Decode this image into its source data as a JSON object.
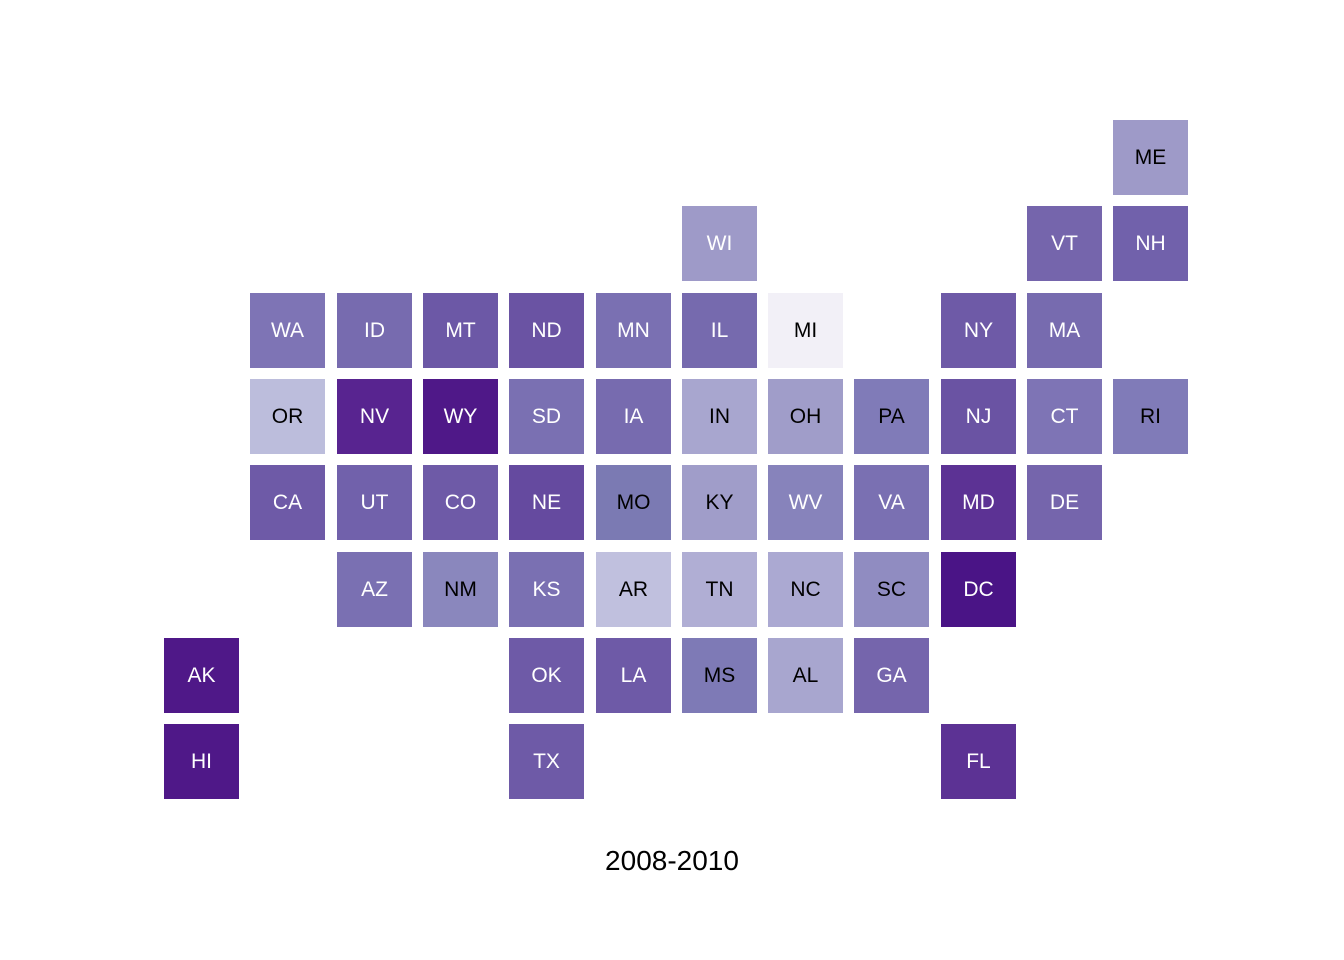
{
  "caption": "2008-2010",
  "colors": {
    "light_text": "#ffffff",
    "dark_text": "#000000"
  },
  "tiles": [
    {
      "abbr": "ME",
      "col": 11,
      "row": 0,
      "color": "#9e9ac8",
      "text": "dark"
    },
    {
      "abbr": "WI",
      "col": 6,
      "row": 1,
      "color": "#9e9ac8",
      "text": "light"
    },
    {
      "abbr": "VT",
      "col": 10,
      "row": 1,
      "color": "#7565ac",
      "text": "light"
    },
    {
      "abbr": "NH",
      "col": 11,
      "row": 1,
      "color": "#7161ab",
      "text": "light"
    },
    {
      "abbr": "WA",
      "col": 1,
      "row": 2,
      "color": "#7e74b5",
      "text": "light"
    },
    {
      "abbr": "ID",
      "col": 2,
      "row": 2,
      "color": "#776baf",
      "text": "light"
    },
    {
      "abbr": "MT",
      "col": 3,
      "row": 2,
      "color": "#6c58a6",
      "text": "light"
    },
    {
      "abbr": "ND",
      "col": 4,
      "row": 2,
      "color": "#6a53a3",
      "text": "light"
    },
    {
      "abbr": "MN",
      "col": 5,
      "row": 2,
      "color": "#7a70b2",
      "text": "light"
    },
    {
      "abbr": "IL",
      "col": 6,
      "row": 2,
      "color": "#766aae",
      "text": "light"
    },
    {
      "abbr": "MI",
      "col": 7,
      "row": 2,
      "color": "#f2f0f7",
      "text": "dark"
    },
    {
      "abbr": "NY",
      "col": 9,
      "row": 2,
      "color": "#6e5aa7",
      "text": "light"
    },
    {
      "abbr": "MA",
      "col": 10,
      "row": 2,
      "color": "#776baf",
      "text": "light"
    },
    {
      "abbr": "OR",
      "col": 1,
      "row": 3,
      "color": "#bcbddc",
      "text": "dark"
    },
    {
      "abbr": "NV",
      "col": 2,
      "row": 3,
      "color": "#582490",
      "text": "light"
    },
    {
      "abbr": "WY",
      "col": 3,
      "row": 3,
      "color": "#4f1888",
      "text": "light"
    },
    {
      "abbr": "SD",
      "col": 4,
      "row": 3,
      "color": "#7a70b2",
      "text": "light"
    },
    {
      "abbr": "IA",
      "col": 5,
      "row": 3,
      "color": "#776baf",
      "text": "light"
    },
    {
      "abbr": "IN",
      "col": 6,
      "row": 3,
      "color": "#a8a6cf",
      "text": "dark"
    },
    {
      "abbr": "OH",
      "col": 7,
      "row": 3,
      "color": "#a09dc9",
      "text": "dark"
    },
    {
      "abbr": "PA",
      "col": 8,
      "row": 3,
      "color": "#807bb8",
      "text": "dark"
    },
    {
      "abbr": "NJ",
      "col": 9,
      "row": 3,
      "color": "#6a53a3",
      "text": "light"
    },
    {
      "abbr": "CT",
      "col": 10,
      "row": 3,
      "color": "#7e74b5",
      "text": "light"
    },
    {
      "abbr": "RI",
      "col": 11,
      "row": 3,
      "color": "#807bb8",
      "text": "dark"
    },
    {
      "abbr": "CA",
      "col": 1,
      "row": 4,
      "color": "#6e5aa7",
      "text": "light"
    },
    {
      "abbr": "UT",
      "col": 2,
      "row": 4,
      "color": "#7161ab",
      "text": "light"
    },
    {
      "abbr": "CO",
      "col": 3,
      "row": 4,
      "color": "#6e5aa7",
      "text": "light"
    },
    {
      "abbr": "NE",
      "col": 4,
      "row": 4,
      "color": "#654a9f",
      "text": "light"
    },
    {
      "abbr": "MO",
      "col": 5,
      "row": 4,
      "color": "#7b7ab3",
      "text": "dark"
    },
    {
      "abbr": "KY",
      "col": 6,
      "row": 4,
      "color": "#a09dc9",
      "text": "dark"
    },
    {
      "abbr": "WV",
      "col": 7,
      "row": 4,
      "color": "#8783bb",
      "text": "light"
    },
    {
      "abbr": "VA",
      "col": 8,
      "row": 4,
      "color": "#7a70b2",
      "text": "light"
    },
    {
      "abbr": "MD",
      "col": 9,
      "row": 4,
      "color": "#5c3294",
      "text": "light"
    },
    {
      "abbr": "DE",
      "col": 10,
      "row": 4,
      "color": "#7565ac",
      "text": "light"
    },
    {
      "abbr": "AZ",
      "col": 2,
      "row": 5,
      "color": "#7a70b2",
      "text": "light"
    },
    {
      "abbr": "NM",
      "col": 3,
      "row": 5,
      "color": "#8a87bd",
      "text": "dark"
    },
    {
      "abbr": "KS",
      "col": 4,
      "row": 5,
      "color": "#7a70b2",
      "text": "light"
    },
    {
      "abbr": "AR",
      "col": 5,
      "row": 5,
      "color": "#c0c0de",
      "text": "dark"
    },
    {
      "abbr": "TN",
      "col": 6,
      "row": 5,
      "color": "#b0aed4",
      "text": "dark"
    },
    {
      "abbr": "NC",
      "col": 7,
      "row": 5,
      "color": "#aba9d2",
      "text": "dark"
    },
    {
      "abbr": "SC",
      "col": 8,
      "row": 5,
      "color": "#908cc1",
      "text": "dark"
    },
    {
      "abbr": "DC",
      "col": 9,
      "row": 5,
      "color": "#4a1486",
      "text": "light"
    },
    {
      "abbr": "AK",
      "col": 0,
      "row": 6,
      "color": "#4f1888",
      "text": "light"
    },
    {
      "abbr": "OK",
      "col": 4,
      "row": 6,
      "color": "#6e5aa7",
      "text": "light"
    },
    {
      "abbr": "LA",
      "col": 5,
      "row": 6,
      "color": "#6e5aa7",
      "text": "light"
    },
    {
      "abbr": "MS",
      "col": 6,
      "row": 6,
      "color": "#7e7ab6",
      "text": "dark"
    },
    {
      "abbr": "AL",
      "col": 7,
      "row": 6,
      "color": "#a8a6cf",
      "text": "dark"
    },
    {
      "abbr": "GA",
      "col": 8,
      "row": 6,
      "color": "#7565ac",
      "text": "light"
    },
    {
      "abbr": "HI",
      "col": 0,
      "row": 7,
      "color": "#4f1888",
      "text": "light"
    },
    {
      "abbr": "TX",
      "col": 4,
      "row": 7,
      "color": "#6e5aa7",
      "text": "light"
    },
    {
      "abbr": "FL",
      "col": 9,
      "row": 7,
      "color": "#5c3294",
      "text": "light"
    }
  ]
}
